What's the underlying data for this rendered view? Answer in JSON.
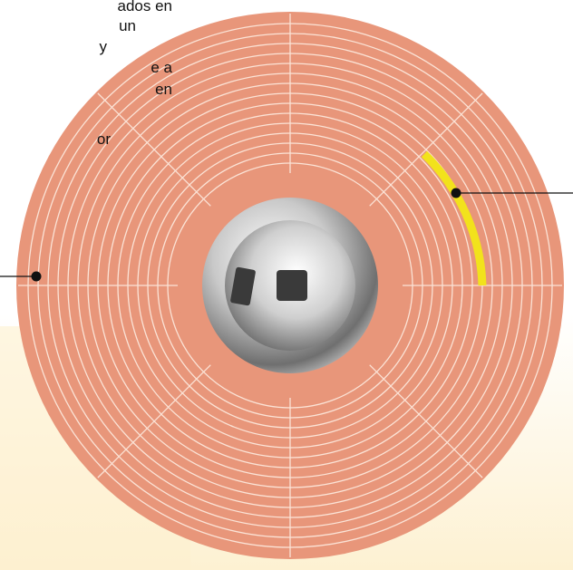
{
  "text_lines": [
    "ados en",
    "un",
    "y",
    "e a",
    "en",
    "or"
  ]
}
